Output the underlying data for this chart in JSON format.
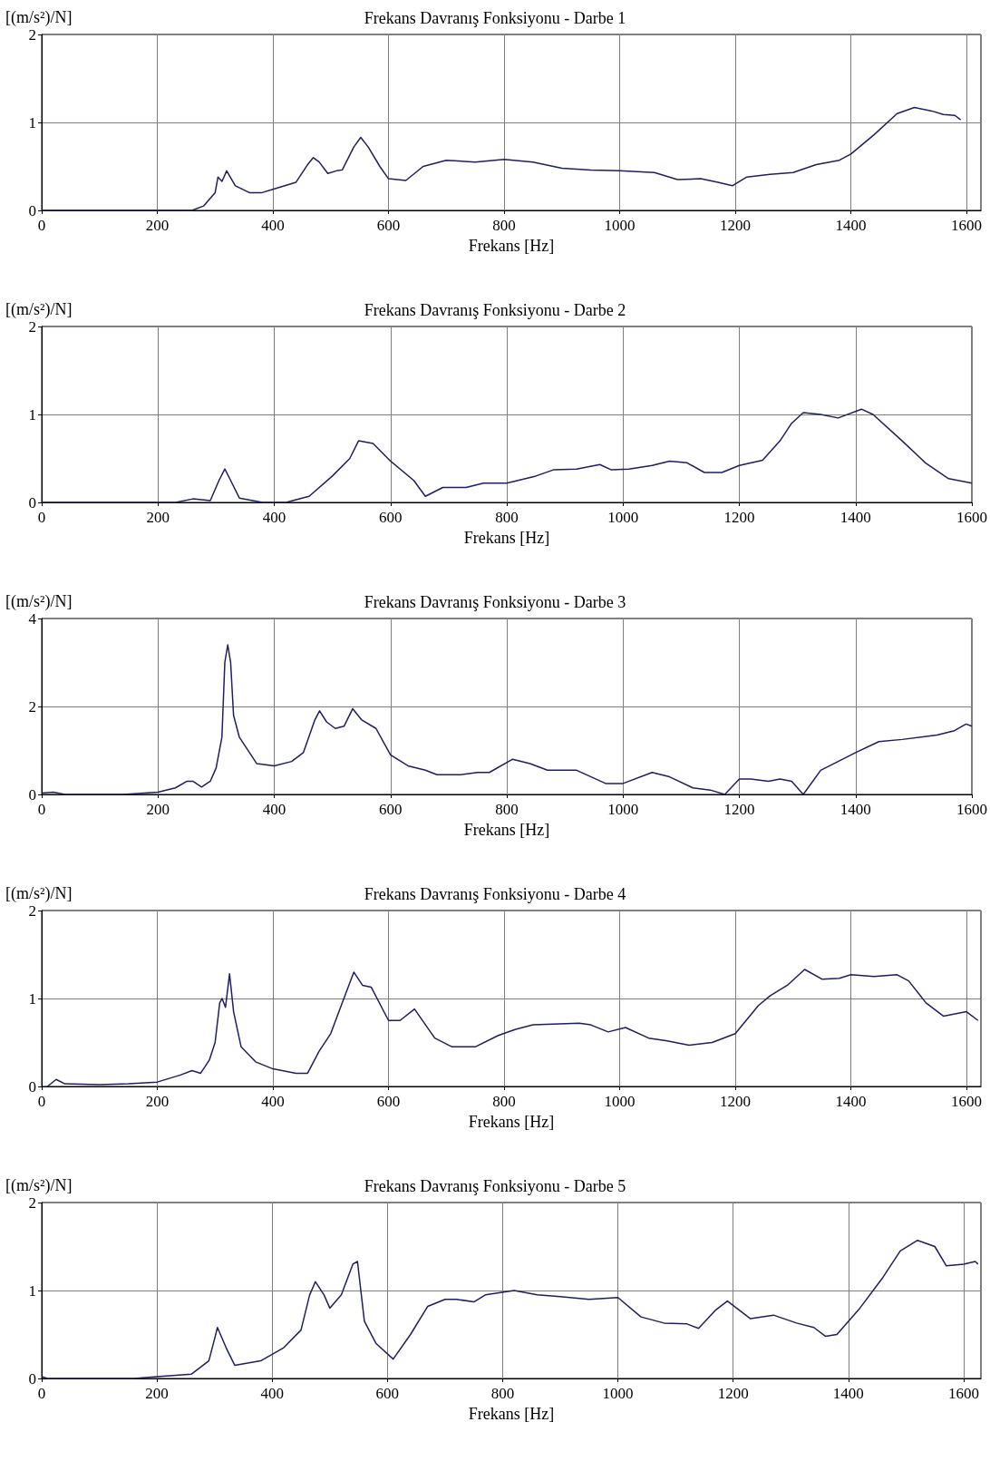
{
  "chart_data": [
    {
      "type": "line",
      "title": "Frekans Davranış Fonksiyonu - Darbe 1",
      "xlabel": "Frekans [Hz]",
      "ylabel": "[(m/s²)/N]",
      "xlim": [
        0,
        1625
      ],
      "xticks": [
        0,
        200,
        400,
        600,
        800,
        1000,
        1200,
        1400,
        1600
      ],
      "ylim": [
        0,
        2
      ],
      "yticks": [
        0,
        1,
        2
      ],
      "grid": true,
      "marker": "none",
      "line_style": "solid",
      "x": [
        0,
        260,
        280,
        300,
        305,
        312,
        320,
        335,
        360,
        380,
        400,
        440,
        460,
        470,
        480,
        495,
        510,
        520,
        540,
        552,
        565,
        585,
        600,
        630,
        660,
        700,
        750,
        800,
        850,
        900,
        950,
        1000,
        1060,
        1100,
        1140,
        1170,
        1195,
        1220,
        1260,
        1300,
        1340,
        1380,
        1400,
        1440,
        1480,
        1510,
        1540,
        1560,
        1580,
        1590
      ],
      "series": [
        {
          "color": "#1e1e64",
          "values": [
            0,
            0,
            0.05,
            0.2,
            0.38,
            0.33,
            0.45,
            0.28,
            0.2,
            0.2,
            0.24,
            0.32,
            0.52,
            0.6,
            0.55,
            0.42,
            0.45,
            0.46,
            0.72,
            0.83,
            0.72,
            0.5,
            0.36,
            0.34,
            0.5,
            0.57,
            0.55,
            0.58,
            0.55,
            0.48,
            0.46,
            0.45,
            0.43,
            0.35,
            0.36,
            0.32,
            0.28,
            0.38,
            0.41,
            0.43,
            0.52,
            0.57,
            0.64,
            0.86,
            1.1,
            1.17,
            1.13,
            1.09,
            1.08,
            1.03
          ]
        }
      ]
    },
    {
      "type": "line",
      "title": "Frekans Davranış Fonksiyonu - Darbe 2",
      "xlabel": "Frekans [Hz]",
      "ylabel": "[(m/s²)/N]",
      "xlim": [
        0,
        1600
      ],
      "xticks": [
        0,
        200,
        400,
        600,
        800,
        1000,
        1200,
        1400,
        1600
      ],
      "ylim": [
        0,
        2
      ],
      "yticks": [
        0,
        1,
        2
      ],
      "grid": true,
      "marker": "none",
      "line_style": "solid",
      "x": [
        0,
        230,
        260,
        290,
        305,
        315,
        325,
        340,
        380,
        420,
        460,
        500,
        530,
        545,
        570,
        600,
        640,
        660,
        690,
        730,
        760,
        800,
        850,
        880,
        920,
        960,
        980,
        1010,
        1050,
        1080,
        1110,
        1140,
        1170,
        1200,
        1240,
        1270,
        1290,
        1310,
        1340,
        1370,
        1410,
        1430,
        1480,
        1520,
        1560,
        1600
      ],
      "series": [
        {
          "color": "#1e1e64",
          "values": [
            0,
            0,
            0.04,
            0.02,
            0.25,
            0.38,
            0.25,
            0.05,
            0,
            0,
            0.07,
            0.3,
            0.5,
            0.7,
            0.67,
            0.47,
            0.25,
            0.07,
            0.17,
            0.17,
            0.22,
            0.22,
            0.3,
            0.37,
            0.38,
            0.43,
            0.37,
            0.38,
            0.42,
            0.47,
            0.45,
            0.34,
            0.34,
            0.42,
            0.48,
            0.7,
            0.9,
            1.02,
            1.0,
            0.96,
            1.06,
            1.0,
            0.7,
            0.45,
            0.27,
            0.22
          ]
        }
      ]
    },
    {
      "type": "line",
      "title": "Frekans Davranış Fonksiyonu - Darbe 3",
      "xlabel": "Frekans [Hz]",
      "ylabel": "[(m/s²)/N]",
      "xlim": [
        0,
        1600
      ],
      "xticks": [
        0,
        200,
        400,
        600,
        800,
        1000,
        1200,
        1400,
        1600
      ],
      "ylim": [
        0,
        4
      ],
      "yticks": [
        0,
        2,
        4
      ],
      "grid": true,
      "marker": "none",
      "line_style": "solid",
      "x": [
        0,
        20,
        40,
        140,
        200,
        230,
        250,
        260,
        275,
        290,
        300,
        310,
        315,
        320,
        325,
        330,
        340,
        370,
        400,
        430,
        450,
        470,
        478,
        490,
        505,
        520,
        535,
        550,
        575,
        600,
        630,
        660,
        680,
        720,
        750,
        770,
        810,
        840,
        870,
        920,
        970,
        1000,
        1050,
        1080,
        1120,
        1150,
        1175,
        1200,
        1220,
        1250,
        1270,
        1290,
        1310,
        1340,
        1400,
        1440,
        1480,
        1540,
        1570,
        1590,
        1600
      ],
      "series": [
        {
          "color": "#1e1e64",
          "values": [
            0.03,
            0.05,
            0,
            0,
            0.05,
            0.15,
            0.3,
            0.3,
            0.17,
            0.3,
            0.6,
            1.3,
            3.0,
            3.4,
            3.0,
            1.8,
            1.3,
            0.7,
            0.65,
            0.75,
            0.95,
            1.7,
            1.9,
            1.65,
            1.5,
            1.55,
            1.95,
            1.7,
            1.5,
            0.9,
            0.65,
            0.55,
            0.45,
            0.45,
            0.5,
            0.5,
            0.8,
            0.7,
            0.55,
            0.55,
            0.25,
            0.25,
            0.5,
            0.4,
            0.15,
            0.1,
            0,
            0.35,
            0.35,
            0.3,
            0.35,
            0.3,
            0,
            0.55,
            0.95,
            1.2,
            1.25,
            1.35,
            1.45,
            1.6,
            1.55
          ]
        }
      ]
    },
    {
      "type": "line",
      "title": "Frekans Davranış Fonksiyonu - Darbe 4",
      "xlabel": "Frekans [Hz]",
      "ylabel": "[(m/s²)/N]",
      "xlim": [
        0,
        1625
      ],
      "xticks": [
        0,
        200,
        400,
        600,
        800,
        1000,
        1200,
        1400,
        1600
      ],
      "ylim": [
        0,
        2
      ],
      "yticks": [
        0,
        1,
        2
      ],
      "grid": true,
      "marker": "none",
      "line_style": "solid",
      "x": [
        10,
        25,
        40,
        100,
        150,
        200,
        240,
        260,
        275,
        290,
        300,
        308,
        312,
        318,
        325,
        332,
        345,
        370,
        400,
        440,
        460,
        480,
        500,
        520,
        540,
        555,
        570,
        600,
        620,
        645,
        680,
        710,
        750,
        790,
        820,
        850,
        930,
        950,
        980,
        1010,
        1050,
        1080,
        1120,
        1160,
        1200,
        1240,
        1260,
        1290,
        1320,
        1350,
        1380,
        1400,
        1440,
        1480,
        1500,
        1530,
        1560,
        1600,
        1620
      ],
      "series": [
        {
          "color": "#1e1e64",
          "values": [
            0,
            0.08,
            0.03,
            0.02,
            0.03,
            0.05,
            0.13,
            0.18,
            0.15,
            0.3,
            0.5,
            0.95,
            1.0,
            0.9,
            1.28,
            0.85,
            0.45,
            0.28,
            0.2,
            0.15,
            0.15,
            0.4,
            0.6,
            0.95,
            1.3,
            1.15,
            1.13,
            0.75,
            0.75,
            0.88,
            0.55,
            0.45,
            0.45,
            0.58,
            0.65,
            0.7,
            0.72,
            0.7,
            0.62,
            0.67,
            0.55,
            0.52,
            0.47,
            0.5,
            0.6,
            0.92,
            1.03,
            1.15,
            1.33,
            1.22,
            1.23,
            1.27,
            1.25,
            1.27,
            1.2,
            0.95,
            0.8,
            0.85,
            0.75
          ]
        }
      ]
    },
    {
      "type": "line",
      "title": "Frekans Davranış Fonksiyonu - Darbe 5",
      "xlabel": "Frekans [Hz]",
      "ylabel": "[(m/s²)/N]",
      "xlim": [
        0,
        1630
      ],
      "xticks": [
        0,
        200,
        400,
        600,
        800,
        1000,
        1200,
        1400,
        1600
      ],
      "ylim": [
        0,
        2
      ],
      "yticks": [
        0,
        1,
        2
      ],
      "grid": true,
      "marker": "none",
      "line_style": "solid",
      "x": [
        0,
        10,
        160,
        200,
        260,
        290,
        300,
        305,
        320,
        335,
        380,
        420,
        450,
        465,
        475,
        490,
        500,
        520,
        540,
        548,
        560,
        580,
        610,
        640,
        670,
        700,
        720,
        750,
        770,
        820,
        860,
        900,
        950,
        1000,
        1040,
        1080,
        1120,
        1140,
        1170,
        1190,
        1230,
        1270,
        1310,
        1340,
        1360,
        1380,
        1420,
        1460,
        1490,
        1520,
        1550,
        1570,
        1600,
        1620,
        1625
      ],
      "series": [
        {
          "color": "#1e1e64",
          "values": [
            0.02,
            0,
            0,
            0.02,
            0.05,
            0.2,
            0.45,
            0.58,
            0.35,
            0.15,
            0.2,
            0.35,
            0.55,
            0.95,
            1.1,
            0.95,
            0.8,
            0.95,
            1.3,
            1.33,
            0.65,
            0.4,
            0.22,
            0.5,
            0.82,
            0.9,
            0.9,
            0.87,
            0.95,
            1.0,
            0.95,
            0.93,
            0.9,
            0.92,
            0.7,
            0.63,
            0.62,
            0.57,
            0.78,
            0.88,
            0.68,
            0.72,
            0.63,
            0.58,
            0.48,
            0.5,
            0.8,
            1.15,
            1.45,
            1.57,
            1.5,
            1.28,
            1.3,
            1.33,
            1.3
          ]
        }
      ]
    }
  ]
}
